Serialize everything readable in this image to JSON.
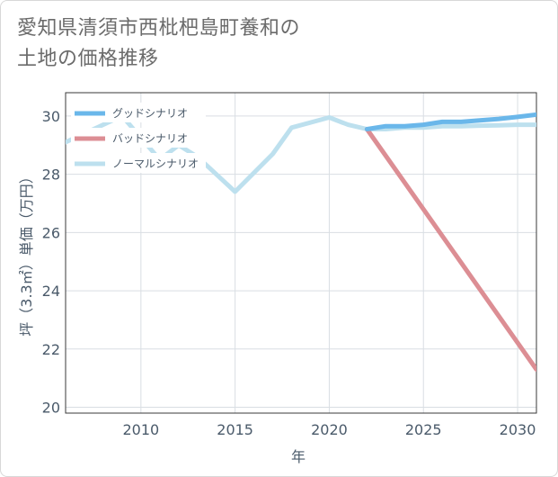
{
  "title_lines": [
    "愛知県清須市西枇杷島町養和の",
    "土地の価格推移"
  ],
  "chart_data": {
    "type": "line",
    "title": "愛知県清須市西枇杷島町養和の土地の価格推移",
    "xlabel": "年",
    "ylabel": "坪（3.3㎡）単価（万円）",
    "xlim": [
      2006,
      2031
    ],
    "ylim": [
      19.8,
      30.8
    ],
    "xticks": [
      2010,
      2015,
      2020,
      2025,
      2030
    ],
    "yticks": [
      20,
      22,
      24,
      26,
      28,
      30
    ],
    "grid": true,
    "legend_position": "top-left",
    "series": [
      {
        "name": "グッドシナリオ",
        "color": "#6ab7ea",
        "x": [
          2022,
          2023,
          2024,
          2025,
          2026,
          2027,
          2028,
          2029,
          2030,
          2031
        ],
        "y": [
          29.55,
          29.65,
          29.65,
          29.7,
          29.8,
          29.8,
          29.85,
          29.9,
          29.97,
          30.05
        ]
      },
      {
        "name": "バッドシナリオ",
        "color": "#dc8e94",
        "x": [
          2022,
          2031
        ],
        "y": [
          29.55,
          21.3
        ]
      },
      {
        "name": "ノーマルシナリオ",
        "color": "#bde0ee",
        "x": [
          2006,
          2009,
          2011,
          2012,
          2013,
          2015,
          2017,
          2018,
          2020,
          2021,
          2022,
          2023,
          2024,
          2025,
          2026,
          2027,
          2028,
          2029,
          2030,
          2031
        ],
        "y": [
          29.1,
          30.0,
          28.5,
          29.0,
          28.6,
          27.4,
          28.7,
          29.6,
          29.95,
          29.7,
          29.55,
          29.55,
          29.6,
          29.6,
          29.65,
          29.65,
          29.67,
          29.68,
          29.7,
          29.7
        ]
      }
    ]
  }
}
